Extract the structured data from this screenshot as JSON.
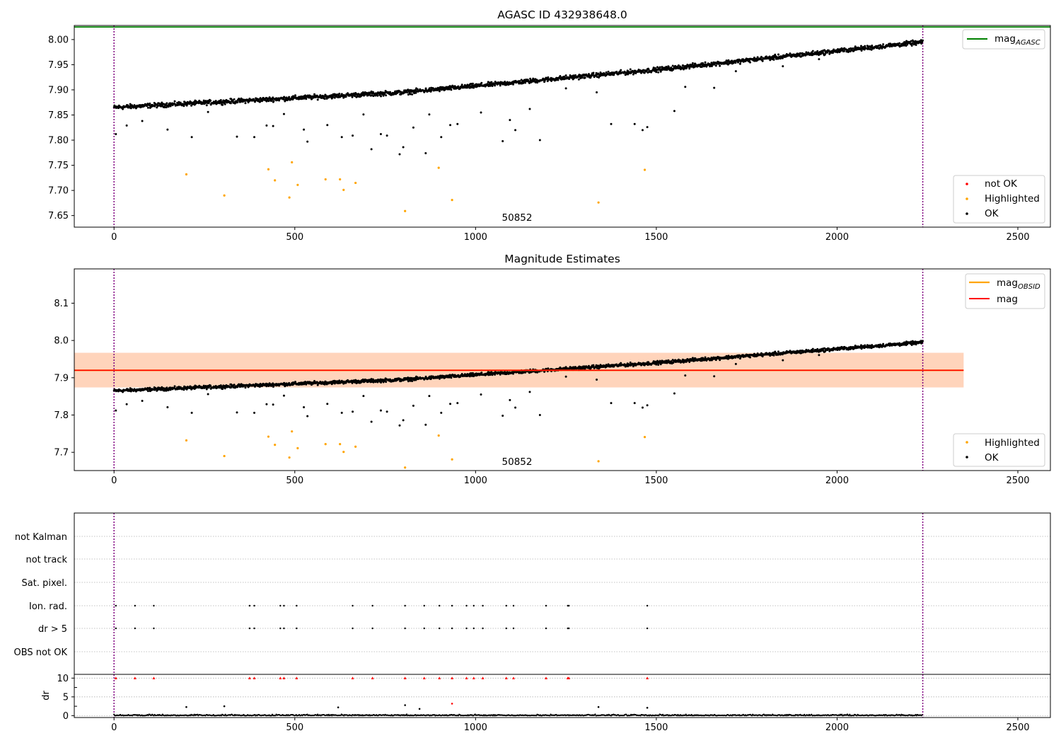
{
  "figure": {
    "panels": [
      {
        "id": "agasc",
        "title": "AGASC ID 432938648.0",
        "x_ticks": [
          0,
          500,
          1000,
          1500,
          2000,
          2500
        ],
        "y_ticks": [
          "7.65",
          "7.70",
          "7.75",
          "7.80",
          "7.85",
          "7.90",
          "7.95",
          "8.00"
        ],
        "annotation": "50852",
        "legend_lines": [
          {
            "label": "mag",
            "sub": "AGASC",
            "color": "#008000"
          }
        ],
        "legend_points": [
          {
            "label": "not OK",
            "color": "#ff0000"
          },
          {
            "label": "Highlighted",
            "color": "#ffa500"
          },
          {
            "label": "OK",
            "color": "#000000"
          }
        ]
      },
      {
        "id": "estimates",
        "title": "Magnitude Estimates",
        "x_ticks": [
          0,
          500,
          1000,
          1500,
          2000,
          2500
        ],
        "y_ticks": [
          "7.7",
          "7.8",
          "7.9",
          "8.0",
          "8.1"
        ],
        "annotation": "50852",
        "legend_lines": [
          {
            "label": "mag",
            "sub": "OBSID",
            "color": "#ffa500"
          },
          {
            "label": "mag",
            "sub": "",
            "color": "#ff0000"
          }
        ],
        "legend_points": [
          {
            "label": "Highlighted",
            "color": "#ffa500"
          },
          {
            "label": "OK",
            "color": "#000000"
          }
        ]
      },
      {
        "id": "flags",
        "y_labels": [
          "not Kalman",
          "not track",
          "Sat. pixel.",
          "Ion. rad.",
          "dr > 5",
          "OBS not OK"
        ]
      },
      {
        "id": "dr",
        "ylabel": "dr",
        "y_ticks": [
          "0",
          "5",
          "10"
        ],
        "x_ticks": [
          0,
          500,
          1000,
          1500,
          2000,
          2500
        ]
      }
    ]
  },
  "chart_data": [
    {
      "type": "scatter",
      "title": "AGASC ID 432938648.0",
      "xlim": [
        -110,
        2590
      ],
      "ylim": [
        7.627,
        8.028
      ],
      "grid": false,
      "legend": "top-right (lines), bottom-right (points)",
      "mag_agasc": 8.025,
      "obs_boundaries": [
        0,
        2237
      ],
      "trend": {
        "x": [
          0,
          800,
          1500,
          2237
        ],
        "y": [
          7.865,
          7.895,
          7.94,
          7.995
        ]
      },
      "highlighted": [
        [
          200,
          7.732
        ],
        [
          305,
          7.69
        ],
        [
          427,
          7.742
        ],
        [
          445,
          7.72
        ],
        [
          485,
          7.686
        ],
        [
          492,
          7.756
        ],
        [
          508,
          7.711
        ],
        [
          585,
          7.722
        ],
        [
          625,
          7.722
        ],
        [
          635,
          7.701
        ],
        [
          668,
          7.715
        ],
        [
          805,
          7.659
        ],
        [
          898,
          7.745
        ],
        [
          935,
          7.681
        ],
        [
          1340,
          7.676
        ],
        [
          1468,
          7.741
        ]
      ],
      "outliers": [
        [
          5,
          7.812
        ],
        [
          35,
          7.829
        ],
        [
          78,
          7.838
        ],
        [
          148,
          7.821
        ],
        [
          215,
          7.806
        ],
        [
          260,
          7.856
        ],
        [
          340,
          7.807
        ],
        [
          388,
          7.806
        ],
        [
          422,
          7.829
        ],
        [
          440,
          7.828
        ],
        [
          470,
          7.852
        ],
        [
          525,
          7.821
        ],
        [
          535,
          7.797
        ],
        [
          590,
          7.83
        ],
        [
          630,
          7.806
        ],
        [
          660,
          7.809
        ],
        [
          690,
          7.851
        ],
        [
          712,
          7.782
        ],
        [
          738,
          7.812
        ],
        [
          755,
          7.809
        ],
        [
          790,
          7.772
        ],
        [
          800,
          7.786
        ],
        [
          828,
          7.825
        ],
        [
          862,
          7.774
        ],
        [
          872,
          7.851
        ],
        [
          905,
          7.806
        ],
        [
          930,
          7.83
        ],
        [
          950,
          7.832
        ],
        [
          1015,
          7.855
        ],
        [
          1075,
          7.798
        ],
        [
          1095,
          7.84
        ],
        [
          1110,
          7.82
        ],
        [
          1150,
          7.862
        ],
        [
          1178,
          7.8
        ],
        [
          1250,
          7.903
        ],
        [
          1335,
          7.895
        ],
        [
          1375,
          7.832
        ],
        [
          1440,
          7.832
        ],
        [
          1462,
          7.82
        ],
        [
          1475,
          7.826
        ],
        [
          1550,
          7.858
        ],
        [
          1580,
          7.906
        ],
        [
          1660,
          7.904
        ],
        [
          1720,
          7.937
        ],
        [
          1850,
          7.947
        ],
        [
          1950,
          7.961
        ]
      ],
      "series": [
        {
          "name": "not OK"
        },
        {
          "name": "Highlighted"
        },
        {
          "name": "OK"
        }
      ],
      "text_annotation": {
        "text": "50852",
        "x": 1100,
        "y": 7.64
      }
    },
    {
      "type": "scatter",
      "title": "Magnitude Estimates",
      "xlim": [
        -110,
        2590
      ],
      "ylim": [
        7.651,
        8.192
      ],
      "grid": false,
      "legend": "top-right (lines), bottom-right (points)",
      "mag_obsid": 7.92,
      "mag": 7.92,
      "band_obsid": [
        7.874,
        7.967
      ],
      "band_mag": [
        7.874,
        7.967
      ],
      "band_x_range": [
        -110,
        2350
      ],
      "series": [
        {
          "name": "Highlighted"
        },
        {
          "name": "OK"
        }
      ],
      "text_annotation": {
        "text": "50852",
        "x": 1100,
        "y": 7.664
      }
    },
    {
      "type": "scatter",
      "categories": [
        "not Kalman",
        "not track",
        "Sat. pixel.",
        "Ion. rad.",
        "dr > 5",
        "OBS not OK"
      ],
      "flag_x": [
        5,
        58,
        110,
        375,
        388,
        460,
        470,
        505,
        660,
        715,
        805,
        858,
        900,
        935,
        975,
        995,
        1020,
        1085,
        1105,
        1195,
        1255,
        1258,
        1475
      ],
      "flagged_rows": [
        "Ion. rad.",
        "dr > 5"
      ]
    },
    {
      "type": "scatter",
      "ylabel": "dr",
      "ylim": [
        -0.5,
        11
      ],
      "flag_markers_y": 10,
      "flag_x": [
        5,
        58,
        110,
        375,
        388,
        460,
        470,
        505,
        660,
        715,
        805,
        858,
        900,
        935,
        975,
        995,
        1020,
        1085,
        1105,
        1195,
        1255,
        1258,
        1475
      ],
      "dr_outliers": [
        [
          200,
          2.3
        ],
        [
          305,
          2.5
        ],
        [
          620,
          2.2
        ],
        [
          805,
          2.8
        ],
        [
          935,
          3.2
        ],
        [
          1340,
          2.3
        ],
        [
          1475,
          2.1
        ],
        [
          845,
          1.8
        ]
      ]
    }
  ]
}
